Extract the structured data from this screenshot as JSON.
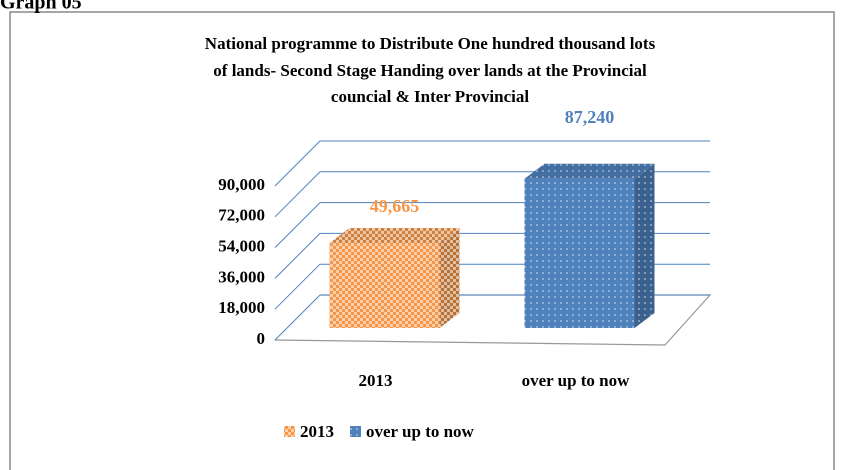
{
  "heading": "Graph 05",
  "chart_data": {
    "type": "bar3d",
    "title": [
      "National programme to Distribute One hundred thousand lots",
      "of lands- Second Stage Handing over lands at the Provincial",
      "councial & Inter Provincial"
    ],
    "categories": [
      "2013",
      "over up to now"
    ],
    "values": [
      49665,
      87240
    ],
    "value_labels": [
      "49,665",
      "87,240"
    ],
    "colors": [
      "#f79646",
      "#4f81bd"
    ],
    "ylim": [
      0,
      90000
    ],
    "yticks": [
      0,
      {
        "value": 18000,
        "label": "18,000"
      },
      {
        "value": 36000,
        "label": "36,000"
      },
      {
        "value": 54000,
        "label": "54,000"
      },
      {
        "value": 72000,
        "label": "72,000"
      },
      {
        "value": 90000,
        "label": "90,000"
      }
    ],
    "grid": true,
    "legend": "bottom"
  }
}
